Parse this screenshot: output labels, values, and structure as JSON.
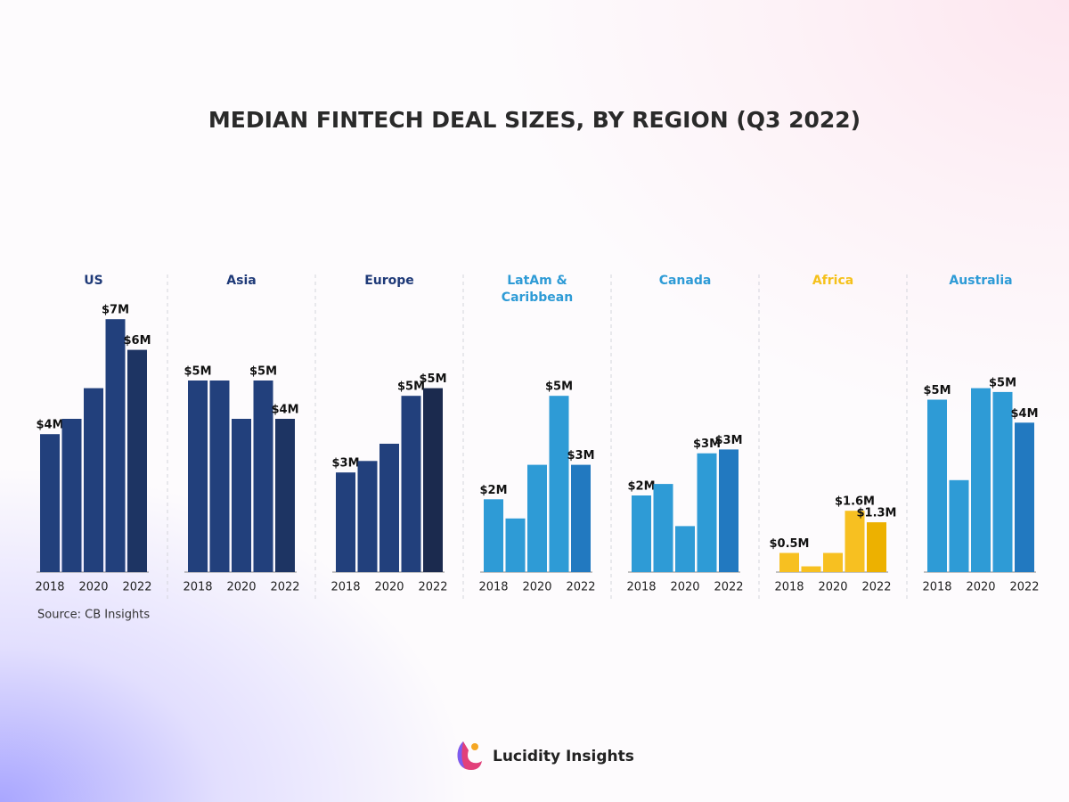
{
  "title": "MEDIAN FINTECH DEAL SIZES, BY REGION (Q3 2022)",
  "source": "Source: CB Insights",
  "brand": "Lucidity Insights",
  "chart_data": [
    {
      "type": "bar",
      "title": "US",
      "title_color": "#1f3a78",
      "categories": [
        "2018",
        null,
        "2020",
        null,
        "2022"
      ],
      "values": [
        3.6,
        4.0,
        4.8,
        6.6,
        5.8
      ],
      "value_labels": [
        "$4M",
        null,
        null,
        "$7M",
        "$6M"
      ],
      "colors": [
        "#22407c",
        "#22407c",
        "#22407c",
        "#22407c",
        "#1d3463"
      ],
      "ylim": [
        0,
        7
      ]
    },
    {
      "type": "bar",
      "title": "Asia",
      "title_color": "#1f3a78",
      "categories": [
        "2018",
        null,
        "2020",
        null,
        "2022"
      ],
      "values": [
        5.0,
        5.0,
        4.0,
        5.0,
        4.0
      ],
      "value_labels": [
        "$5M",
        null,
        null,
        "$5M",
        "$4M"
      ],
      "colors": [
        "#22407c",
        "#22407c",
        "#22407c",
        "#22407c",
        "#1d3463"
      ],
      "ylim": [
        0,
        7
      ]
    },
    {
      "type": "bar",
      "title": "Europe",
      "title_color": "#1f3a78",
      "categories": [
        "2018",
        null,
        "2020",
        null,
        "2022"
      ],
      "values": [
        2.6,
        2.9,
        3.35,
        4.6,
        4.8
      ],
      "value_labels": [
        "$3M",
        null,
        null,
        "$5M",
        "$5M"
      ],
      "colors": [
        "#22407c",
        "#22407c",
        "#22407c",
        "#22407c",
        "#1b2a4e"
      ],
      "ylim": [
        0,
        7
      ]
    },
    {
      "type": "bar",
      "title": "LatAm & Caribbean",
      "title_color": "#2e9bd6",
      "categories": [
        "2018",
        null,
        "2020",
        null,
        "2022"
      ],
      "values": [
        1.9,
        1.4,
        2.8,
        4.6,
        2.8
      ],
      "value_labels": [
        "$2M",
        null,
        null,
        "$5M",
        "$3M"
      ],
      "colors": [
        "#2e9bd6",
        "#2e9bd6",
        "#2e9bd6",
        "#2e9bd6",
        "#2279c0"
      ],
      "ylim": [
        0,
        7
      ]
    },
    {
      "type": "bar",
      "title": "Canada",
      "title_color": "#2e9bd6",
      "categories": [
        "2018",
        null,
        "2020",
        null,
        "2022"
      ],
      "values": [
        2.0,
        2.3,
        1.2,
        3.1,
        3.2
      ],
      "value_labels": [
        "$2M",
        null,
        null,
        "$3M",
        "$3M"
      ],
      "colors": [
        "#2e9bd6",
        "#2e9bd6",
        "#2e9bd6",
        "#2e9bd6",
        "#2279c0"
      ],
      "ylim": [
        0,
        7
      ]
    },
    {
      "type": "bar",
      "title": "Africa",
      "title_color": "#f5c11b",
      "categories": [
        "2018",
        null,
        "2020",
        null,
        "2022"
      ],
      "values": [
        0.5,
        0.15,
        0.5,
        1.6,
        1.3
      ],
      "value_labels": [
        "$0.5M",
        null,
        null,
        "$1.6M",
        "$1.3M"
      ],
      "colors": [
        "#f7c021",
        "#f7c021",
        "#f7c021",
        "#f7c021",
        "#edb100"
      ],
      "ylim": [
        0,
        7
      ]
    },
    {
      "type": "bar",
      "title": "Australia",
      "title_color": "#2e9bd6",
      "categories": [
        "2018",
        null,
        "2020",
        null,
        "2022"
      ],
      "values": [
        4.5,
        2.4,
        4.8,
        4.7,
        3.9
      ],
      "value_labels": [
        "$5M",
        null,
        null,
        "$5M",
        "$4M"
      ],
      "colors": [
        "#2e9bd6",
        "#2e9bd6",
        "#2e9bd6",
        "#2e9bd6",
        "#2279c0"
      ],
      "ylim": [
        0,
        7
      ]
    }
  ]
}
